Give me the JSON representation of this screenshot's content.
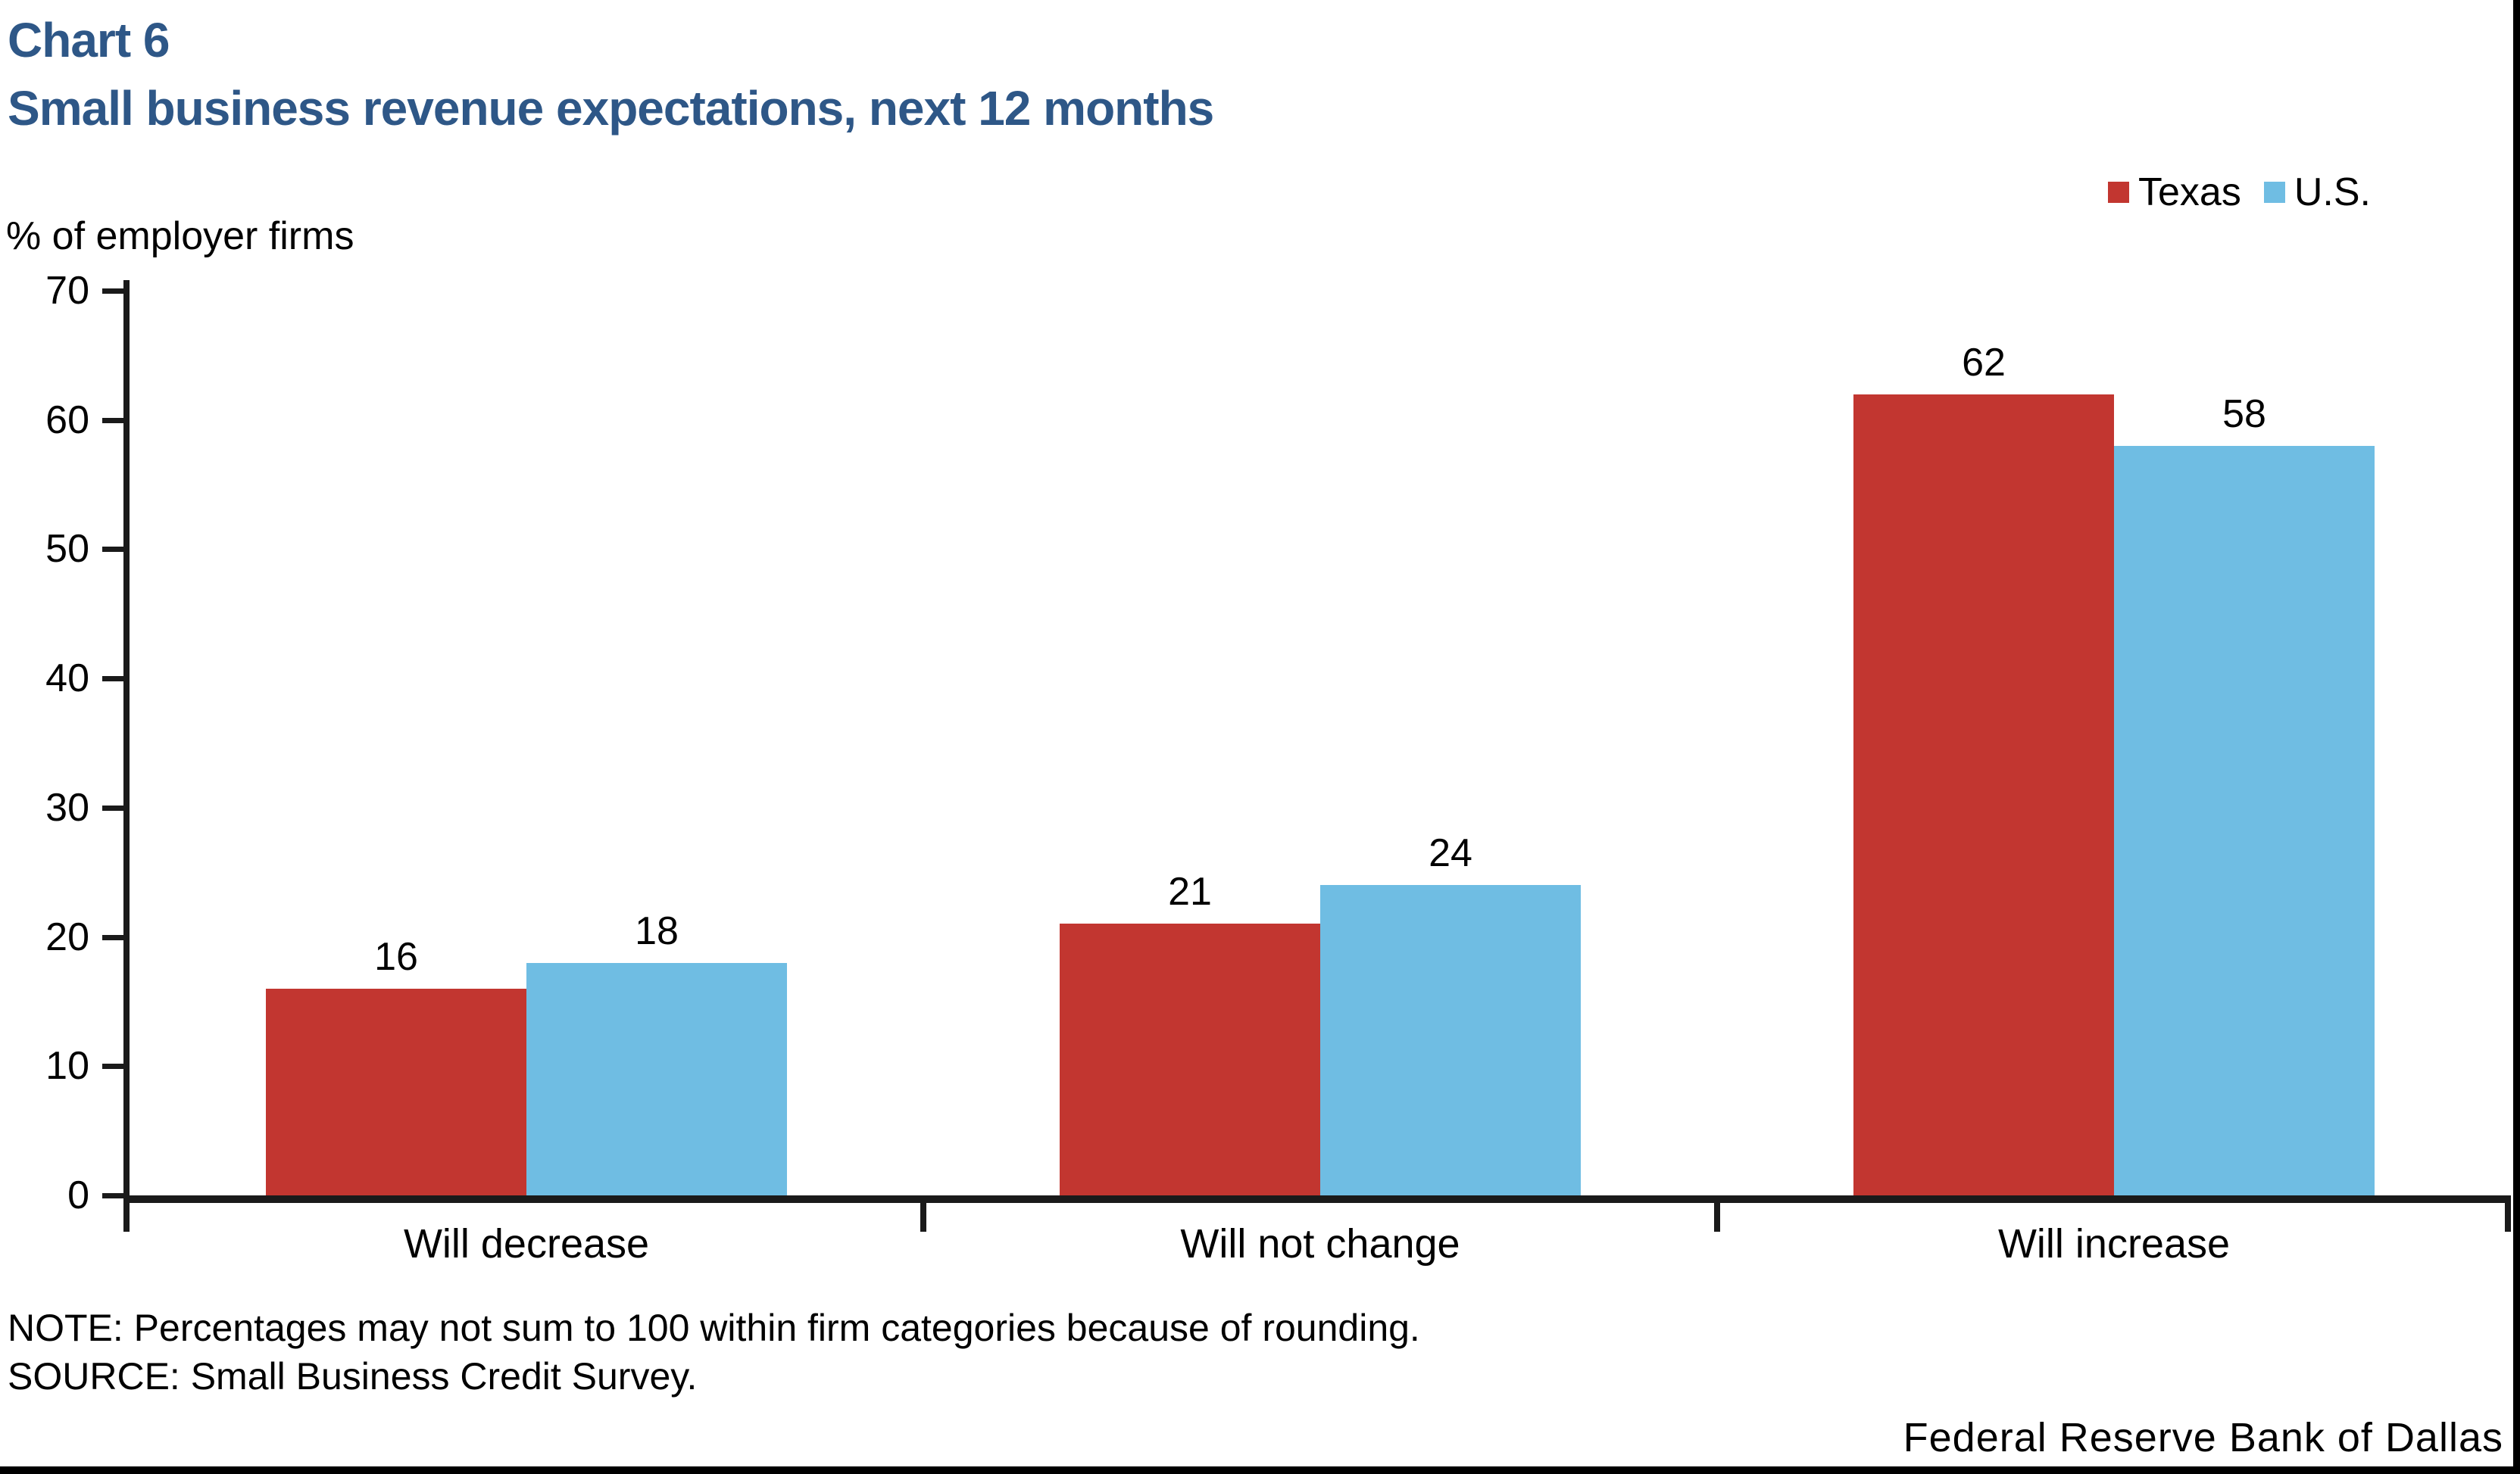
{
  "page": {
    "title_line1": "Chart 6",
    "title_line2": "Small business revenue expectations, next 12 months",
    "y_unit_label": "% of employer firms",
    "note": "NOTE: Percentages may not sum to 100 within firm categories because of rounding.",
    "source": "SOURCE: Small Business Credit Survey.",
    "branding": "Federal Reserve Bank of Dallas"
  },
  "colors": {
    "title_blue": "#2E5787",
    "texas_red": "#C23630",
    "us_blue": "#6FBDE3",
    "axis_black": "#1A1A1A"
  },
  "chart_data": {
    "type": "bar",
    "title": "Small business revenue expectations, next 12 months",
    "categories": [
      "Will decrease",
      "Will not change",
      "Will increase"
    ],
    "series": [
      {
        "name": "Texas",
        "color": "#C23630",
        "values": [
          16,
          21,
          62
        ]
      },
      {
        "name": "U.S.",
        "color": "#6FBDE3",
        "values": [
          18,
          24,
          58
        ]
      }
    ],
    "ylabel": "% of employer firms",
    "xlabel": "",
    "ylim": [
      0,
      70
    ],
    "yticks": [
      0,
      10,
      20,
      30,
      40,
      50,
      60,
      70
    ],
    "grid": false,
    "legend_position": "top-right",
    "data_labels": true
  }
}
